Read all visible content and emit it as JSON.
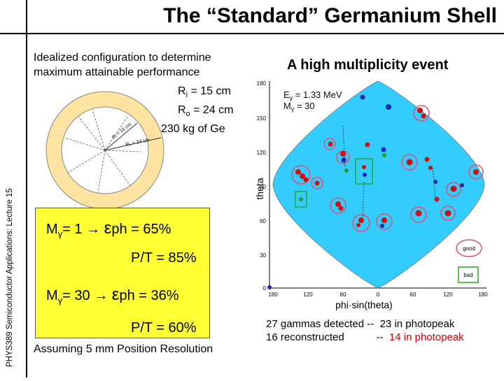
{
  "slide": {
    "title": "The “Standard” Germanium Shell",
    "sidebar": "PHYS389 Semiconductor Applications: Lecture 15",
    "description": [
      "Idealized configuration to determine",
      "maximum attainable performance"
    ],
    "specs": {
      "ri_label": "R",
      "ri_sub": "i",
      "ri_value": " = 15 cm",
      "ro_label": "R",
      "ro_sub": "o",
      "ro_value": " = 24 cm",
      "mass": "230 kg of Ge"
    },
    "ring_labels": {
      "ri": "Rᵢ = 15 cm",
      "ro": "Rₒ = 24 cm"
    },
    "box": {
      "line1_m": "M",
      "line1_gamma": "γ",
      "line1_eq": "=  1",
      "line1_arrow": "→",
      "line1_eps": "ε",
      "line1_sub": "ph",
      "line1_val": " = 65%",
      "line2": "P/T = 85%",
      "line3_m": "M",
      "line3_gamma": "γ",
      "line3_eq": "= 30",
      "line3_arrow": "→",
      "line3_eps": "ε",
      "line3_sub": "ph",
      "line3_val": " = 36%",
      "line4": "P/T = 60%"
    },
    "assumption": "Assuming 5 mm Position Resolution",
    "event": {
      "title": "A high multiplicity event",
      "energy_label": "E",
      "energy_gamma": "γ",
      "energy_value": " = 1.33 MeV",
      "mult_label": "M",
      "mult_gamma": "γ",
      "mult_value": " = 30",
      "ylabel": "theta",
      "xlabel": "phi·sin(theta)",
      "y_ticks": [
        "180",
        "150",
        "120",
        "90",
        "60",
        "30",
        "0"
      ],
      "x_ticks": [
        "180",
        "120",
        "60",
        "0",
        "60",
        "120",
        "180"
      ],
      "legend_good": "good",
      "legend_bad": "bad"
    },
    "summary": {
      "left1": "27 gammas detected --",
      "right1": "23 in photopeak",
      "left2": "16 reconstructed",
      "dash2": "--",
      "right2": "14 in photopeak"
    },
    "colors": {
      "box": "#ffff33",
      "plot_bg": "#33ccff",
      "hit_red": "#d01010",
      "hit_blue": "#1a2ab0",
      "circle_pink": "#e05070",
      "box_green": "#22aa22"
    }
  }
}
